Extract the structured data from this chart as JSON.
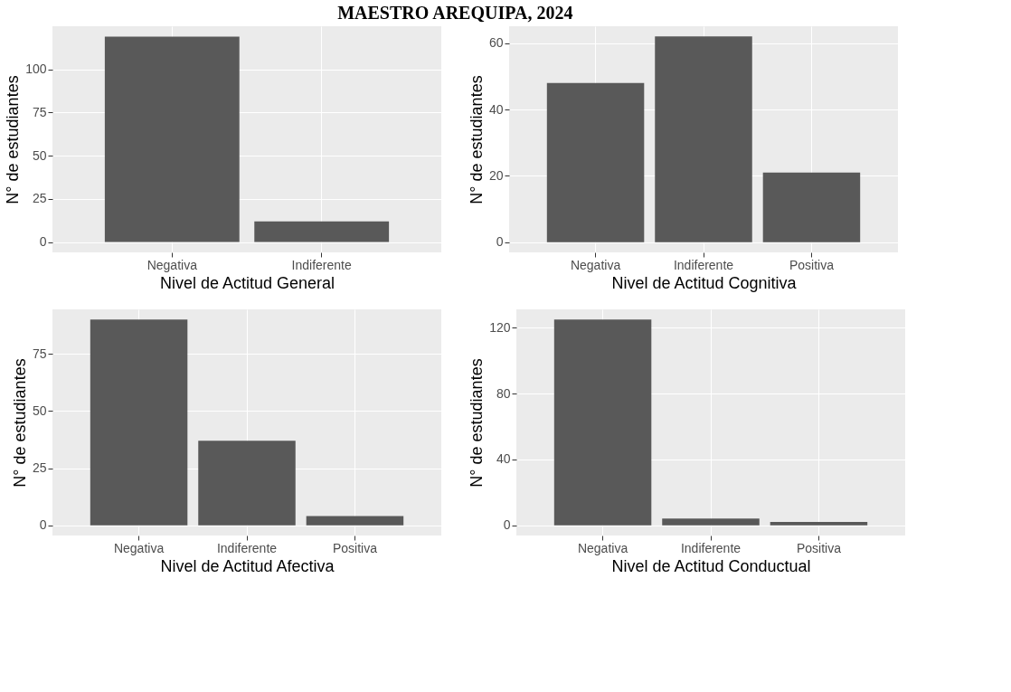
{
  "chart_data": [
    {
      "type": "bar",
      "title": "MAESTRO AREQUIPA, 2024",
      "xlabel": "Nivel de Actitud General",
      "ylabel": "N° de estudiantes",
      "categories": [
        "Negativa",
        "Indiferente"
      ],
      "values": [
        119,
        12
      ],
      "color": "#595959",
      "ylim": [
        -6,
        125
      ],
      "yticks": [
        0,
        25,
        50,
        75,
        100
      ],
      "grid": true
    },
    {
      "type": "bar",
      "xlabel": "Nivel de Actitud Cognitiva",
      "ylabel": "N° de estudiantes",
      "categories": [
        "Negativa",
        "Indiferente",
        "Positiva"
      ],
      "values": [
        48,
        62,
        21
      ],
      "color": "#595959",
      "ylim": [
        -3.1,
        65.1
      ],
      "yticks": [
        0,
        20,
        40,
        60
      ],
      "grid": true
    },
    {
      "type": "bar",
      "xlabel": "Nivel de Actitud Afectiva",
      "ylabel": "N° de estudiantes",
      "categories": [
        "Negativa",
        "Indiferente",
        "Positiva"
      ],
      "values": [
        90,
        37,
        4
      ],
      "color": "#595959",
      "ylim": [
        -4.5,
        94.5
      ],
      "yticks": [
        0,
        25,
        50,
        75
      ],
      "grid": true
    },
    {
      "type": "bar",
      "xlabel": "Nivel de Actitud Conductual",
      "ylabel": "N° de estudiantes",
      "categories": [
        "Negativa",
        "Indiferente",
        "Positiva"
      ],
      "values": [
        125,
        4,
        2
      ],
      "color": "#595959",
      "ylim": [
        -6.25,
        131.25
      ],
      "yticks": [
        0,
        40,
        80,
        120
      ],
      "grid": true
    }
  ]
}
